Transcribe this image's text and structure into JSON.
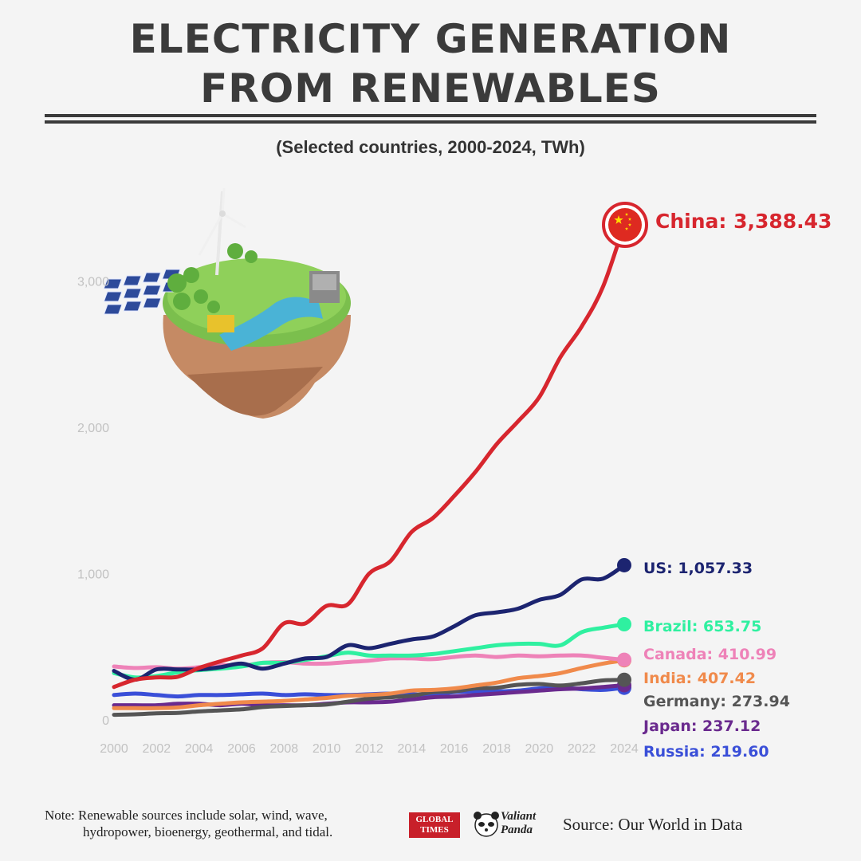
{
  "header": {
    "title_line1": "ELECTRICITY GENERATION",
    "title_line2": "FROM RENEWABLES",
    "subtitle": "(Selected countries, 2000-2024, TWh)"
  },
  "chart_data": {
    "type": "line",
    "title": "ELECTRICITY GENERATION FROM RENEWABLES",
    "subtitle": "(Selected countries, 2000-2024, TWh)",
    "xlabel": "",
    "ylabel": "",
    "xlim": [
      2000,
      2024
    ],
    "ylim": [
      0,
      3500
    ],
    "x_ticks": [
      "2000",
      "2002",
      "2004",
      "2006",
      "2008",
      "2010",
      "2012",
      "2014",
      "2016",
      "2018",
      "2020",
      "2022",
      "2024"
    ],
    "y_ticks": [
      "0",
      "1,000",
      "2,000",
      "3,000"
    ],
    "grid": false,
    "x": [
      2000,
      2001,
      2002,
      2003,
      2004,
      2005,
      2006,
      2007,
      2008,
      2009,
      2010,
      2011,
      2012,
      2013,
      2014,
      2015,
      2016,
      2017,
      2018,
      2019,
      2020,
      2021,
      2022,
      2023,
      2024
    ],
    "series": [
      {
        "name": "China",
        "label": "China: 3,388.43",
        "color": "#d7262e",
        "values": [
          225,
          275,
          290,
          295,
          355,
          400,
          440,
          490,
          660,
          660,
          780,
          790,
          1000,
          1085,
          1285,
          1380,
          1530,
          1695,
          1885,
          2040,
          2205,
          2480,
          2690,
          2960,
          3388.43
        ]
      },
      {
        "name": "US",
        "label": "US: 1,057.33",
        "color": "#1c2470",
        "values": [
          335,
          275,
          345,
          345,
          345,
          360,
          385,
          350,
          385,
          420,
          430,
          510,
          490,
          520,
          550,
          570,
          640,
          715,
          735,
          760,
          820,
          855,
          960,
          965,
          1057.33
        ]
      },
      {
        "name": "Brazil",
        "label": "Brazil: 653.75",
        "color": "#2ff0a0",
        "values": [
          320,
          290,
          300,
          325,
          340,
          350,
          365,
          390,
          390,
          410,
          435,
          460,
          440,
          440,
          440,
          450,
          470,
          490,
          510,
          520,
          520,
          510,
          600,
          630,
          653.75
        ]
      },
      {
        "name": "Canada",
        "label": "Canada: 410.99",
        "color": "#ee82b8",
        "values": [
          365,
          355,
          360,
          350,
          360,
          375,
          370,
          390,
          395,
          385,
          385,
          395,
          405,
          420,
          420,
          415,
          430,
          440,
          430,
          440,
          435,
          440,
          440,
          425,
          410.99
        ]
      },
      {
        "name": "India",
        "label": "India: 407.42",
        "color": "#f08a4b",
        "values": [
          80,
          80,
          80,
          85,
          100,
          110,
          120,
          125,
          130,
          140,
          150,
          165,
          170,
          180,
          200,
          205,
          215,
          235,
          255,
          285,
          300,
          320,
          355,
          385,
          407.42
        ]
      },
      {
        "name": "Germany",
        "label": "Germany: 273.94",
        "color": "#555555",
        "values": [
          35,
          38,
          45,
          48,
          58,
          65,
          72,
          88,
          95,
          100,
          105,
          125,
          145,
          155,
          165,
          190,
          195,
          215,
          220,
          240,
          245,
          235,
          250,
          270,
          273.94
        ]
      },
      {
        "name": "Japan",
        "label": "Japan: 237.12",
        "color": "#6a2a8e",
        "values": [
          100,
          100,
          100,
          110,
          110,
          100,
          110,
          100,
          100,
          100,
          110,
          120,
          120,
          125,
          140,
          155,
          160,
          170,
          180,
          190,
          200,
          210,
          215,
          225,
          237.12
        ]
      },
      {
        "name": "Russia",
        "label": "Russia: 219.60",
        "color": "#3a4fd8",
        "values": [
          170,
          180,
          170,
          160,
          170,
          170,
          175,
          180,
          170,
          175,
          170,
          170,
          175,
          180,
          175,
          170,
          190,
          195,
          195,
          200,
          215,
          220,
          210,
          205,
          219.6
        ]
      }
    ]
  },
  "footer": {
    "note_line1": "Note: Renewable sources include solar, wind, wave,",
    "note_line2": "hydropower, bioenergy, geothermal, and tidal.",
    "logo_gt_line1": "GLOBAL",
    "logo_gt_line2": "TIMES",
    "logo_vp_line1": "Valiant",
    "logo_vp_line2": "Panda",
    "source": "Source: Our World in Data"
  }
}
